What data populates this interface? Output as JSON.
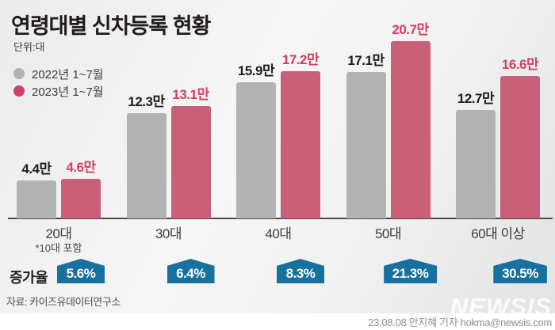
{
  "header": {
    "title": "연령대별 신차등록 현황",
    "unit_label": "단위:대"
  },
  "legend": [
    {
      "label": "2022년 1~7월",
      "color": "#b2b2b3"
    },
    {
      "label": "2023년 1~7월",
      "color": "#cf4066"
    }
  ],
  "chart_data": {
    "type": "bar",
    "title": "연령대별 신차등록 현황",
    "unit": "만",
    "categories": [
      "20대",
      "30대",
      "40대",
      "50대",
      "60대 이상"
    ],
    "category_note": {
      "category": "20대",
      "text": "*10대 포함"
    },
    "series": [
      {
        "name": "2022년 1~7월",
        "bar_color": "#b3b3b3",
        "label_color": "#1c1c1c",
        "values": [
          4.4,
          12.3,
          15.9,
          17.1,
          12.7
        ],
        "labels": [
          "4.4만",
          "12.3만",
          "15.9만",
          "17.1만",
          "12.7만"
        ]
      },
      {
        "name": "2023년 1~7월",
        "bar_color": "#c96078",
        "label_color": "#d63c5f",
        "values": [
          4.6,
          13.1,
          17.2,
          20.7,
          16.6
        ],
        "labels": [
          "4.6만",
          "13.1만",
          "17.2만",
          "20.7만",
          "16.6만"
        ]
      }
    ],
    "growth": {
      "label": "증가율",
      "values": [
        "5.6%",
        "6.4%",
        "8.3%",
        "21.3%",
        "30.5%"
      ],
      "badge_color": "#16719e"
    },
    "ylim": [
      0,
      21
    ],
    "grid": false,
    "legend_position": "top-left"
  },
  "footer": {
    "source": "자료: 카이즈유데이터연구소",
    "watermark": "NEWSIS",
    "credit": "23.08.08 안지혜 기자 hokma@newsis.com"
  }
}
